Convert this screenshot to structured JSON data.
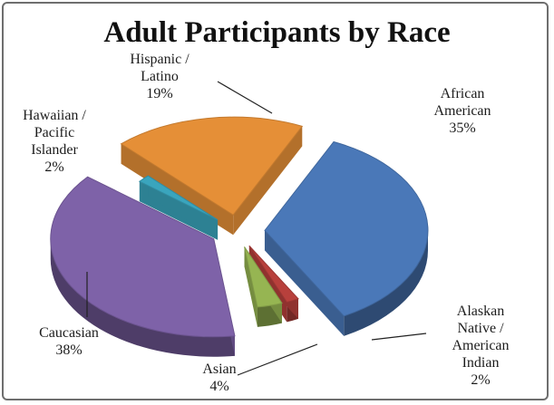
{
  "chart_data": {
    "type": "pie",
    "title": "Adult Participants by Race",
    "slices": [
      {
        "label_lines": [
          "African",
          "American"
        ],
        "pct_label": "35%",
        "value": 35,
        "color": "#4a78b8"
      },
      {
        "label_lines": [
          "Alaskan",
          "Native /",
          "American",
          "Indian"
        ],
        "pct_label": "2%",
        "value": 2,
        "color": "#b8403c"
      },
      {
        "label_lines": [
          "Asian"
        ],
        "pct_label": "4%",
        "value": 4,
        "color": "#96b552"
      },
      {
        "label_lines": [
          "Caucasian"
        ],
        "pct_label": "38%",
        "value": 38,
        "color": "#7e62a8"
      },
      {
        "label_lines": [
          "Hawaiian /",
          "Pacific",
          "Islander"
        ],
        "pct_label": "2%",
        "value": 2,
        "color": "#3aa5bd"
      },
      {
        "label_lines": [
          "Hispanic /",
          "Latino"
        ],
        "pct_label": "19%",
        "value": 19,
        "color": "#e58f37"
      }
    ],
    "legend": "none",
    "style": "3d-exploded"
  }
}
